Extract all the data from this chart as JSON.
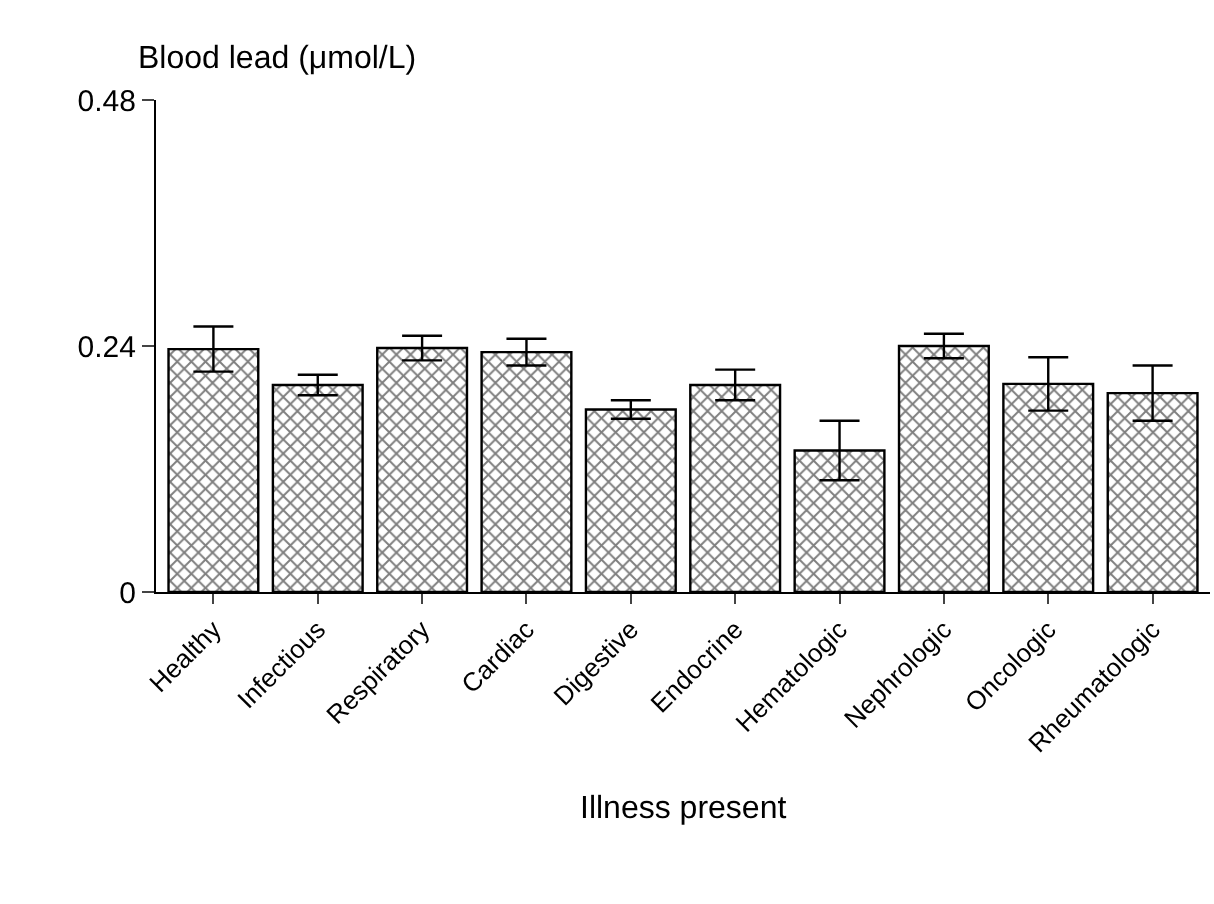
{
  "chart_data": {
    "type": "bar",
    "ylabel": "Blood lead (μmol/L)",
    "xlabel": "Illness present",
    "categories": [
      "Healthy",
      "Infectious",
      "Respiratory",
      "Cardiac",
      "Digestive",
      "Endocrine",
      "Hematologic",
      "Nephrologic",
      "Oncologic",
      "Rheumatologic"
    ],
    "values": [
      0.237,
      0.202,
      0.238,
      0.234,
      0.178,
      0.202,
      0.138,
      0.24,
      0.203,
      0.194
    ],
    "errors": [
      0.022,
      0.01,
      0.012,
      0.013,
      0.009,
      0.015,
      0.029,
      0.012,
      0.026,
      0.027
    ],
    "color": "#000000",
    "ylim": [
      0,
      0.48
    ],
    "yticks": [
      0,
      0.24,
      0.48
    ]
  }
}
